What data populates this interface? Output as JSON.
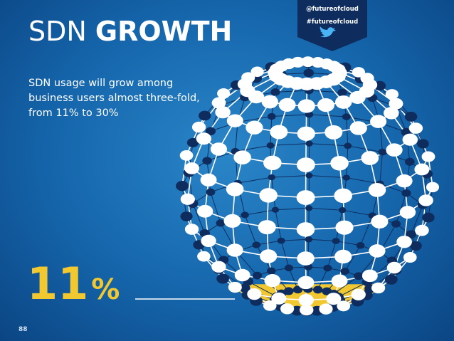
{
  "title": {
    "regular": "SDN",
    "bold": "GROWTH"
  },
  "badge": {
    "handle": "@futureofcloud",
    "hashtag": "#futureofcloud"
  },
  "body": "SDN usage will grow among business users almost three-fold, from 11% to 30%",
  "stat": {
    "value": 11,
    "unit": "%"
  },
  "page_number": "88"
}
